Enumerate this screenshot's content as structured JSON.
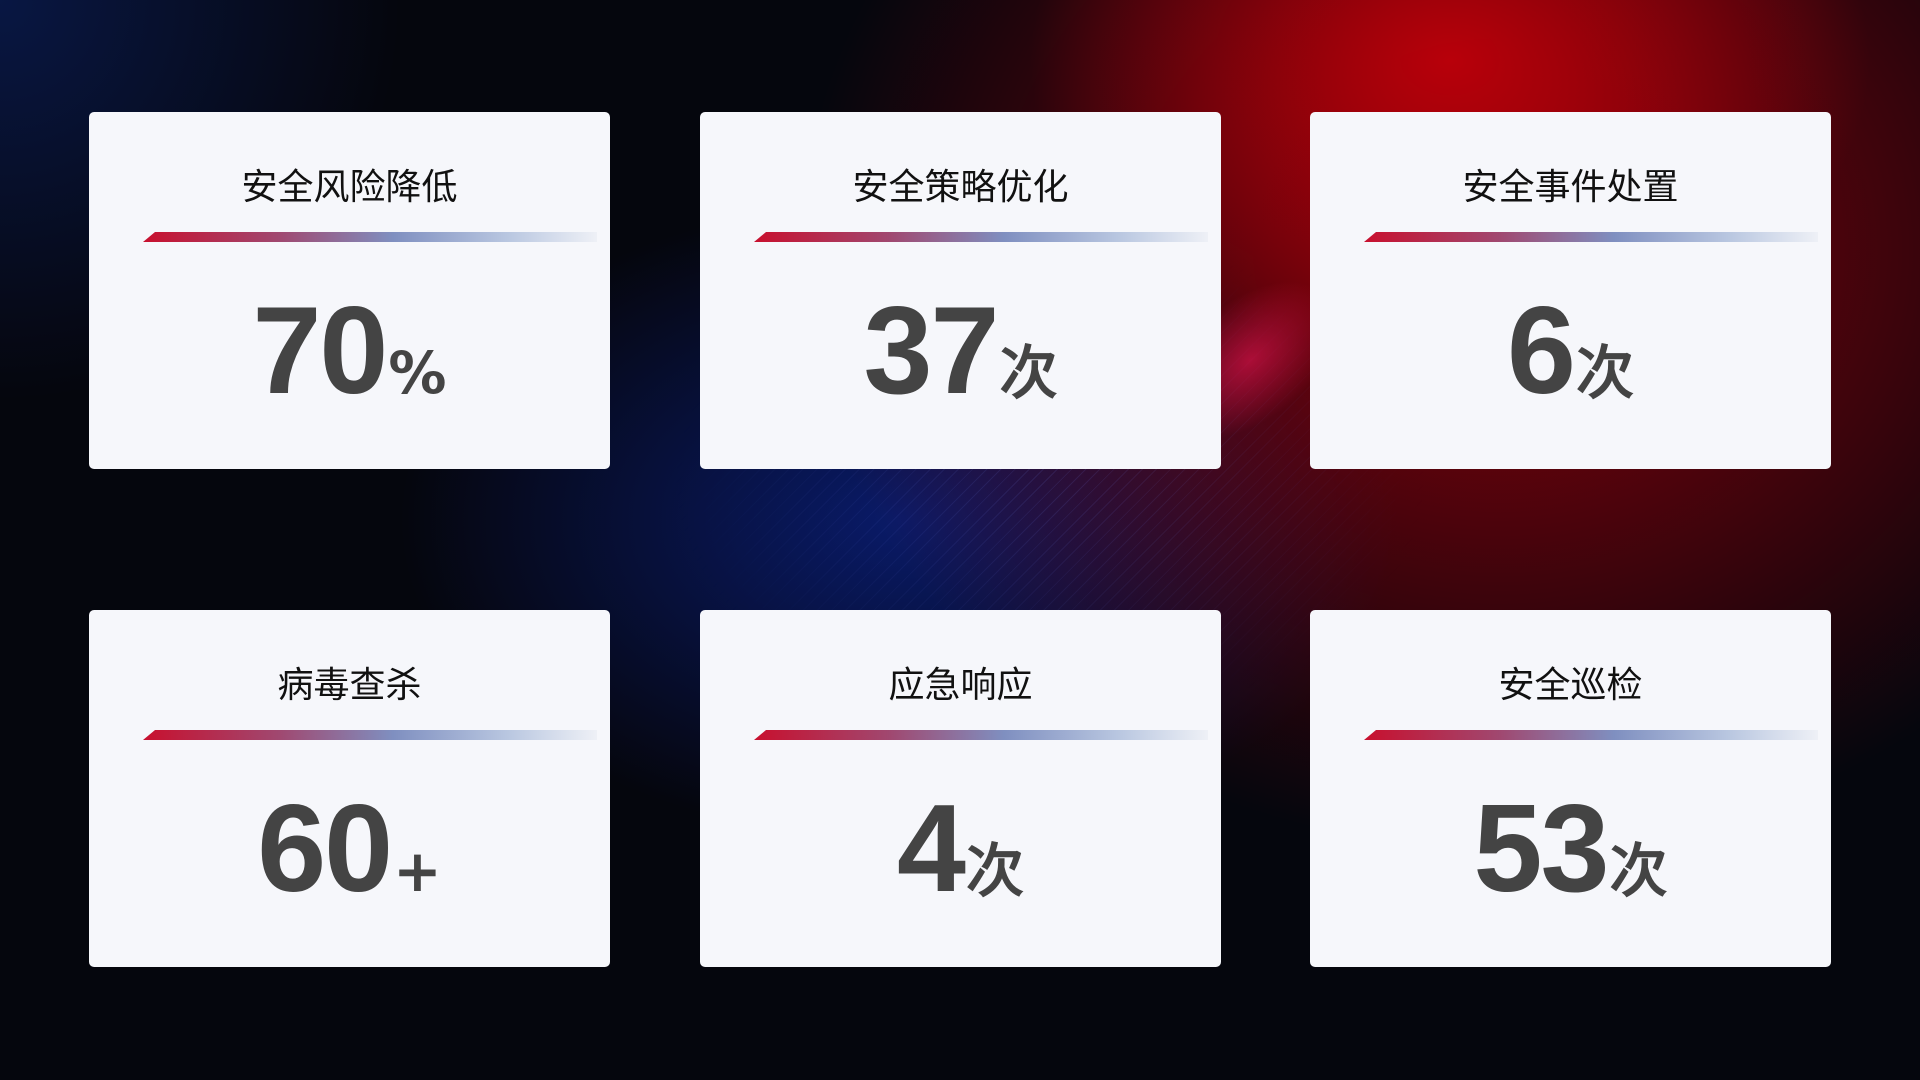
{
  "colors": {
    "accent_red": "#c8102e",
    "accent_blue": "#7f8fc0",
    "card_bg": "#f6f7fb",
    "value_text": "#444444"
  },
  "cards": [
    {
      "title": "安全风险降低",
      "value": "70",
      "unit": "%"
    },
    {
      "title": "安全策略优化",
      "value": "37",
      "unit": "次"
    },
    {
      "title": "安全事件处置",
      "value": "6",
      "unit": "次"
    },
    {
      "title": "病毒查杀",
      "value": "60",
      "unit": "+"
    },
    {
      "title": "应急响应",
      "value": "4",
      "unit": "次"
    },
    {
      "title": "安全巡检",
      "value": "53",
      "unit": "次"
    }
  ]
}
